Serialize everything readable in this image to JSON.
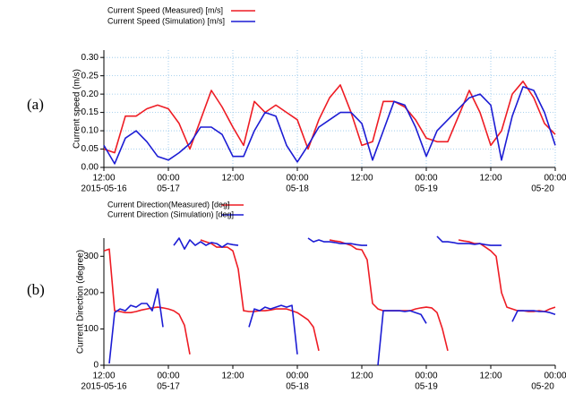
{
  "chart_data": [
    {
      "type": "line",
      "panel_label": "(a)",
      "y_label": "Current speed (m/s)",
      "x": [
        "2015-05-16 12:00",
        "2015-05-16 14:00",
        "2015-05-16 16:00",
        "2015-05-16 18:00",
        "2015-05-16 20:00",
        "2015-05-16 22:00",
        "2015-05-17 00:00",
        "2015-05-17 02:00",
        "2015-05-17 04:00",
        "2015-05-17 06:00",
        "2015-05-17 08:00",
        "2015-05-17 10:00",
        "2015-05-17 12:00",
        "2015-05-17 14:00",
        "2015-05-17 16:00",
        "2015-05-17 18:00",
        "2015-05-17 20:00",
        "2015-05-17 22:00",
        "2015-05-18 00:00",
        "2015-05-18 02:00",
        "2015-05-18 04:00",
        "2015-05-18 06:00",
        "2015-05-18 08:00",
        "2015-05-18 10:00",
        "2015-05-18 12:00",
        "2015-05-18 14:00",
        "2015-05-18 16:00",
        "2015-05-18 18:00",
        "2015-05-18 20:00",
        "2015-05-18 22:00",
        "2015-05-19 00:00",
        "2015-05-19 02:00",
        "2015-05-19 04:00",
        "2015-05-19 06:00",
        "2015-05-19 08:00",
        "2015-05-19 10:00",
        "2015-05-19 12:00",
        "2015-05-19 14:00",
        "2015-05-19 16:00",
        "2015-05-19 18:00",
        "2015-05-19 20:00",
        "2015-05-19 22:00",
        "2015-05-20 00:00"
      ],
      "series": [
        {
          "name": "Current Speed (Measured)  [m/s]",
          "color": "#ee1c24",
          "values": [
            0.05,
            0.04,
            0.14,
            0.14,
            0.16,
            0.17,
            0.16,
            0.12,
            0.05,
            0.13,
            0.21,
            0.165,
            0.11,
            0.06,
            0.18,
            0.15,
            0.17,
            0.15,
            0.13,
            0.05,
            0.13,
            0.19,
            0.225,
            0.15,
            0.06,
            0.07,
            0.18,
            0.18,
            0.165,
            0.13,
            0.08,
            0.07,
            0.07,
            0.14,
            0.21,
            0.15,
            0.06,
            0.1,
            0.2,
            0.235,
            0.19,
            0.12,
            0.09
          ]
        },
        {
          "name": "Current Speed (Simulation) [m/s]",
          "color": "#1c1cd4",
          "values": [
            0.06,
            0.01,
            0.08,
            0.1,
            0.07,
            0.03,
            0.02,
            0.04,
            0.065,
            0.11,
            0.11,
            0.09,
            0.03,
            0.03,
            0.1,
            0.15,
            0.14,
            0.06,
            0.015,
            0.06,
            0.11,
            0.13,
            0.15,
            0.15,
            0.12,
            0.02,
            0.1,
            0.18,
            0.17,
            0.11,
            0.03,
            0.1,
            0.13,
            0.16,
            0.19,
            0.2,
            0.17,
            0.02,
            0.14,
            0.22,
            0.21,
            0.15,
            0.06
          ]
        }
      ],
      "xlim": [
        "2015-05-16 12:00",
        "2015-05-20 00:00"
      ],
      "xticks": [
        {
          "value": "2015-05-16 12:00",
          "label": "12:00",
          "sublabel": "2015-05-16"
        },
        {
          "value": "2015-05-17 00:00",
          "label": "00:00",
          "sublabel": "05-17"
        },
        {
          "value": "2015-05-17 12:00",
          "label": "12:00"
        },
        {
          "value": "2015-05-18 00:00",
          "label": "00:00",
          "sublabel": "05-18"
        },
        {
          "value": "2015-05-18 12:00",
          "label": "12:00"
        },
        {
          "value": "2015-05-19 00:00",
          "label": "00:00",
          "sublabel": "05-19"
        },
        {
          "value": "2015-05-19 12:00",
          "label": "12:00"
        },
        {
          "value": "2015-05-20 00:00",
          "label": "00:00",
          "sublabel": "05-20"
        }
      ],
      "ylim": [
        0,
        0.32
      ],
      "yticks": [
        {
          "value": 0,
          "label": "0.00"
        },
        0.05,
        {
          "value": 0.1,
          "label": "0.10"
        },
        0.15,
        {
          "value": 0.2,
          "label": "0.20"
        },
        0.25,
        {
          "value": 0.3,
          "label": "0.30"
        }
      ],
      "grid": true
    },
    {
      "type": "line",
      "panel_label": "(b)",
      "y_label": "Current Direction (degree)",
      "x": [
        "2015-05-16 12:00",
        "2015-05-16 13:00",
        "2015-05-16 14:00",
        "2015-05-16 15:00",
        "2015-05-16 16:00",
        "2015-05-16 17:00",
        "2015-05-16 18:00",
        "2015-05-16 19:00",
        "2015-05-16 20:00",
        "2015-05-16 21:00",
        "2015-05-16 22:00",
        "2015-05-16 23:00",
        "2015-05-17 00:00",
        "2015-05-17 01:00",
        "2015-05-17 02:00",
        "2015-05-17 03:00",
        "2015-05-17 04:00",
        "2015-05-17 05:00",
        "2015-05-17 06:00",
        "2015-05-17 07:00",
        "2015-05-17 08:00",
        "2015-05-17 09:00",
        "2015-05-17 10:00",
        "2015-05-17 11:00",
        "2015-05-17 12:00",
        "2015-05-17 13:00",
        "2015-05-17 14:00",
        "2015-05-17 15:00",
        "2015-05-17 16:00",
        "2015-05-17 17:00",
        "2015-05-17 18:00",
        "2015-05-17 19:00",
        "2015-05-17 20:00",
        "2015-05-17 21:00",
        "2015-05-17 22:00",
        "2015-05-17 23:00",
        "2015-05-18 00:00",
        "2015-05-18 01:00",
        "2015-05-18 02:00",
        "2015-05-18 03:00",
        "2015-05-18 04:00",
        "2015-05-18 05:00",
        "2015-05-18 06:00",
        "2015-05-18 07:00",
        "2015-05-18 08:00",
        "2015-05-18 09:00",
        "2015-05-18 10:00",
        "2015-05-18 11:00",
        "2015-05-18 12:00",
        "2015-05-18 13:00",
        "2015-05-18 14:00",
        "2015-05-18 15:00",
        "2015-05-18 16:00",
        "2015-05-18 17:00",
        "2015-05-18 18:00",
        "2015-05-18 19:00",
        "2015-05-18 20:00",
        "2015-05-18 21:00",
        "2015-05-18 22:00",
        "2015-05-18 23:00",
        "2015-05-19 00:00",
        "2015-05-19 01:00",
        "2015-05-19 02:00",
        "2015-05-19 03:00",
        "2015-05-19 04:00",
        "2015-05-19 05:00",
        "2015-05-19 06:00",
        "2015-05-19 07:00",
        "2015-05-19 08:00",
        "2015-05-19 09:00",
        "2015-05-19 10:00",
        "2015-05-19 11:00",
        "2015-05-19 12:00",
        "2015-05-19 13:00",
        "2015-05-19 14:00",
        "2015-05-19 15:00",
        "2015-05-19 16:00",
        "2015-05-19 17:00",
        "2015-05-19 18:00",
        "2015-05-19 19:00",
        "2015-05-19 20:00",
        "2015-05-19 21:00",
        "2015-05-19 22:00",
        "2015-05-19 23:00",
        "2015-05-20 00:00"
      ],
      "series": [
        {
          "name": "Current Direction(Measured)  [deg]",
          "color": "#ee1c24",
          "values": [
            315,
            320,
            150,
            148,
            145,
            145,
            148,
            152,
            155,
            158,
            160,
            158,
            155,
            150,
            140,
            110,
            30,
            null,
            345,
            340,
            335,
            325,
            325,
            325,
            315,
            265,
            150,
            148,
            148,
            150,
            150,
            152,
            155,
            155,
            155,
            150,
            145,
            135,
            125,
            105,
            40,
            null,
            345,
            342,
            340,
            335,
            330,
            320,
            318,
            290,
            170,
            155,
            150,
            150,
            150,
            150,
            150,
            150,
            155,
            158,
            160,
            158,
            145,
            100,
            40,
            null,
            345,
            342,
            340,
            335,
            335,
            325,
            315,
            300,
            200,
            160,
            155,
            150,
            150,
            148,
            148,
            150,
            148,
            155,
            160
          ]
        },
        {
          "name": "Current Direction (Simulation) [deg]",
          "color": "#1c1cd4",
          "values": [
            null,
            5,
            145,
            155,
            150,
            165,
            160,
            170,
            170,
            150,
            210,
            105,
            null,
            330,
            350,
            320,
            345,
            330,
            340,
            330,
            338,
            335,
            325,
            335,
            332,
            330,
            null,
            105,
            155,
            150,
            160,
            155,
            160,
            165,
            160,
            165,
            30,
            null,
            350,
            340,
            345,
            340,
            340,
            338,
            335,
            335,
            335,
            332,
            330,
            330,
            null,
            0,
            150,
            150,
            150,
            150,
            148,
            150,
            145,
            140,
            115,
            null,
            355,
            340,
            340,
            338,
            335,
            335,
            335,
            333,
            335,
            332,
            330,
            330,
            330,
            null,
            120,
            150,
            150,
            150,
            150,
            148,
            148,
            145,
            140
          ]
        }
      ],
      "xlim": [
        "2015-05-16 12:00",
        "2015-05-20 00:00"
      ],
      "xticks": [
        {
          "value": "2015-05-16 12:00",
          "label": "12:00",
          "sublabel": "2015-05-16"
        },
        {
          "value": "2015-05-17 00:00",
          "label": "00:00",
          "sublabel": "05-17"
        },
        {
          "value": "2015-05-17 12:00",
          "label": "12:00"
        },
        {
          "value": "2015-05-18 00:00",
          "label": "00:00",
          "sublabel": "05-18"
        },
        {
          "value": "2015-05-18 12:00",
          "label": "12:00"
        },
        {
          "value": "2015-05-19 00:00",
          "label": "00:00",
          "sublabel": "05-19"
        },
        {
          "value": "2015-05-19 12:00",
          "label": "12:00"
        },
        {
          "value": "2015-05-20 00:00",
          "label": "00:00",
          "sublabel": "05-20"
        }
      ],
      "ylim": [
        0,
        350
      ],
      "yticks": [
        0,
        100,
        200,
        300
      ],
      "grid": false
    }
  ]
}
